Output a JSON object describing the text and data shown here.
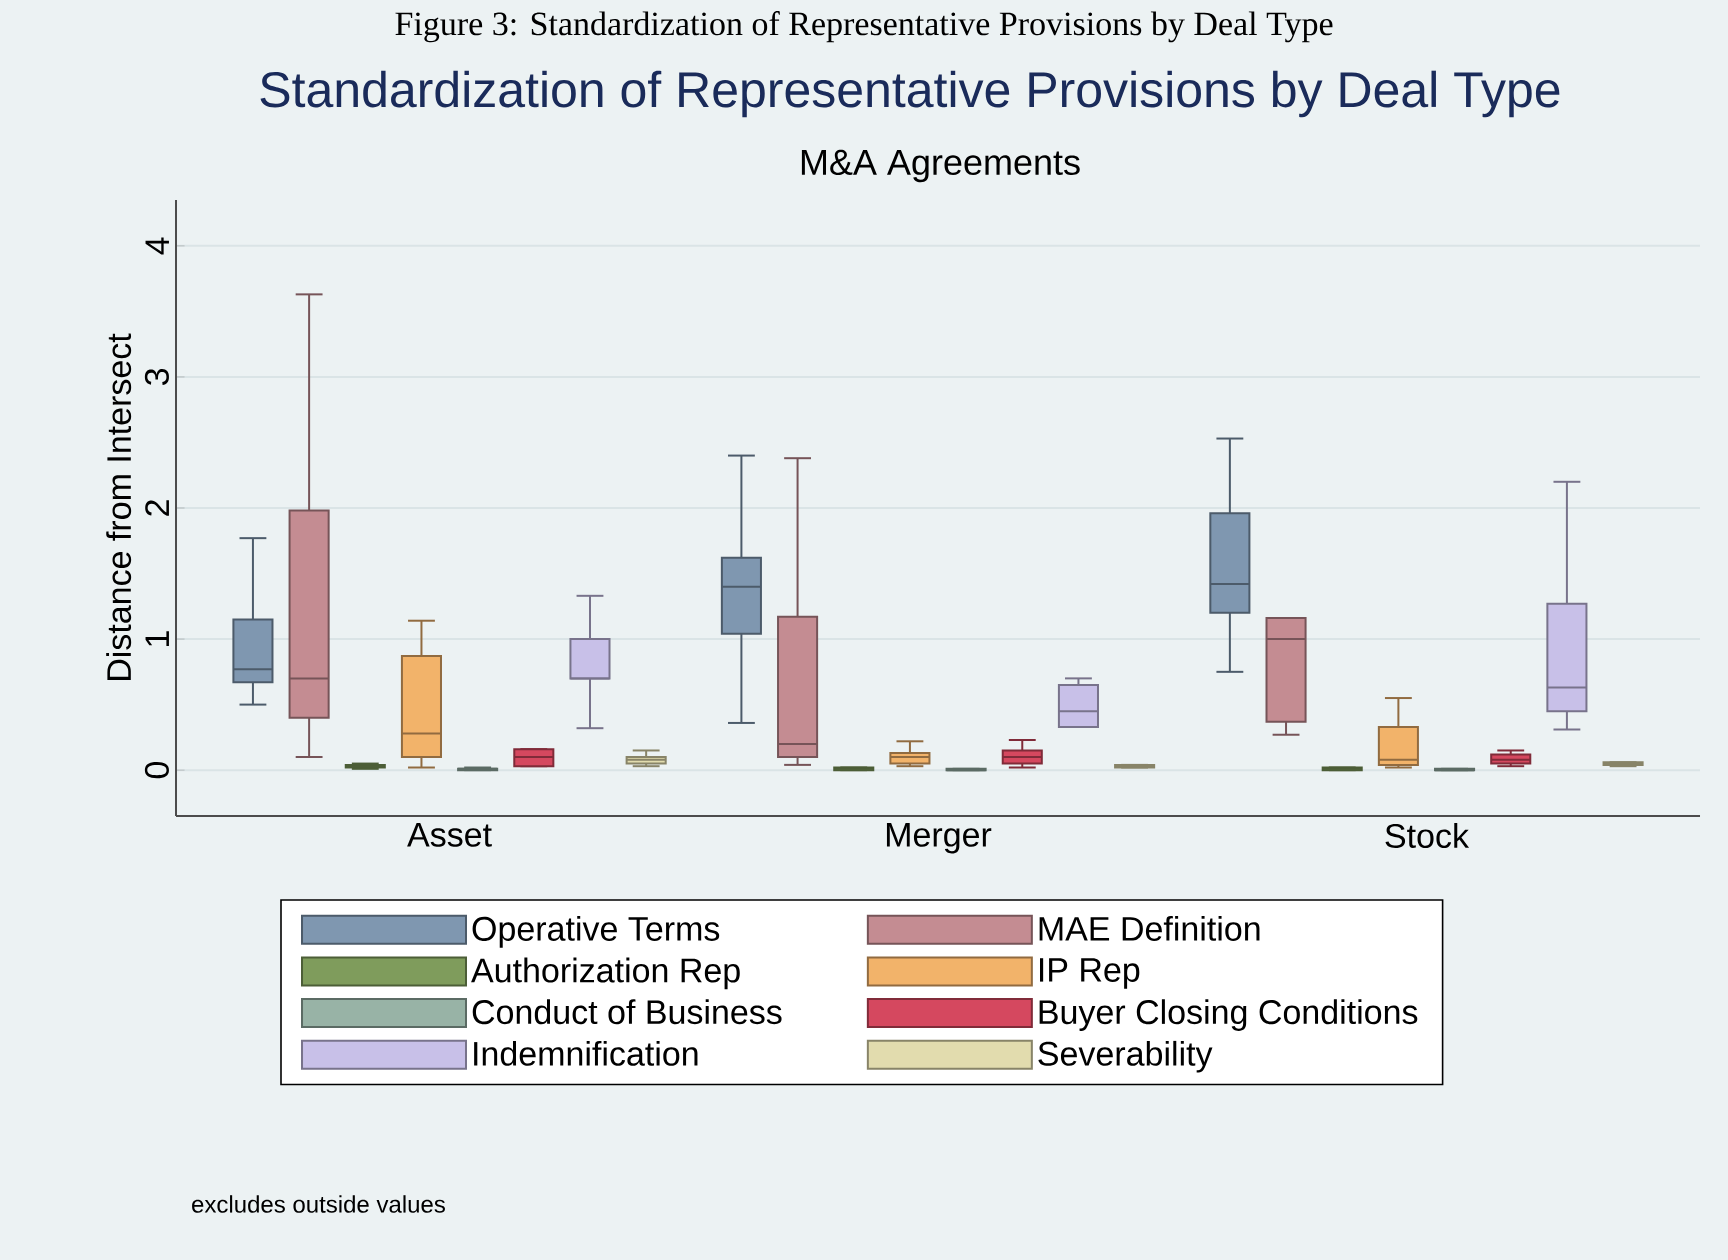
{
  "chart_data": {
    "type": "box",
    "title": "Standardization of Representative Provisions by Deal Type",
    "subtitle": "M&A Agreements",
    "ylabel": "Distance from Intersect",
    "categories": [
      "Asset",
      "Merger",
      "Stock"
    ],
    "series": [
      {
        "name": "Operative Terms",
        "color": "#7f97b0",
        "boxes": [
          {
            "low": 0.5,
            "q1": 0.67,
            "median": 0.77,
            "q3": 1.15,
            "high": 1.77
          },
          {
            "low": 0.36,
            "q1": 1.04,
            "median": 1.4,
            "q3": 1.62,
            "high": 2.4
          },
          {
            "low": 0.75,
            "q1": 1.2,
            "median": 1.42,
            "q3": 1.96,
            "high": 2.53
          }
        ]
      },
      {
        "name": "MAE Definition",
        "color": "#c48c92",
        "boxes": [
          {
            "low": 0.1,
            "q1": 0.4,
            "median": 0.7,
            "q3": 1.98,
            "high": 3.63
          },
          {
            "low": 0.04,
            "q1": 0.1,
            "median": 0.2,
            "q3": 1.17,
            "high": 2.38
          },
          {
            "low": 0.27,
            "q1": 0.37,
            "median": 1.0,
            "q3": 1.16,
            "high": 1.16
          }
        ]
      },
      {
        "name": "Authorization Rep",
        "color": "#7f9c5c",
        "boxes": [
          {
            "low": 0.01,
            "q1": 0.02,
            "median": 0.03,
            "q3": 0.04,
            "high": 0.05
          },
          {
            "low": 0.0,
            "q1": 0.0,
            "median": 0.01,
            "q3": 0.02,
            "high": 0.02
          },
          {
            "low": 0.0,
            "q1": 0.0,
            "median": 0.01,
            "q3": 0.02,
            "high": 0.02
          }
        ]
      },
      {
        "name": "IP Rep",
        "color": "#f2b36a",
        "boxes": [
          {
            "low": 0.02,
            "q1": 0.1,
            "median": 0.28,
            "q3": 0.87,
            "high": 1.14
          },
          {
            "low": 0.03,
            "q1": 0.05,
            "median": 0.1,
            "q3": 0.13,
            "high": 0.22
          },
          {
            "low": 0.02,
            "q1": 0.04,
            "median": 0.08,
            "q3": 0.33,
            "high": 0.55
          }
        ]
      },
      {
        "name": "Conduct of Business",
        "color": "#98b3a6",
        "boxes": [
          {
            "low": 0.0,
            "q1": 0.0,
            "median": 0.01,
            "q3": 0.01,
            "high": 0.02
          },
          {
            "low": 0.0,
            "q1": 0.0,
            "median": 0.0,
            "q3": 0.01,
            "high": 0.01
          },
          {
            "low": 0.0,
            "q1": 0.0,
            "median": 0.0,
            "q3": 0.01,
            "high": 0.01
          }
        ]
      },
      {
        "name": "Buyer Closing Conditions",
        "color": "#d5485f",
        "boxes": [
          {
            "low": 0.03,
            "q1": 0.03,
            "median": 0.1,
            "q3": 0.16,
            "high": 0.16
          },
          {
            "low": 0.02,
            "q1": 0.05,
            "median": 0.1,
            "q3": 0.15,
            "high": 0.23
          },
          {
            "low": 0.03,
            "q1": 0.05,
            "median": 0.08,
            "q3": 0.12,
            "high": 0.15
          }
        ]
      },
      {
        "name": "Indemnification",
        "color": "#c8c0e8",
        "boxes": [
          {
            "low": 0.32,
            "q1": 0.7,
            "median": 0.7,
            "q3": 1.0,
            "high": 1.33
          },
          {
            "low": 0.33,
            "q1": 0.33,
            "median": 0.45,
            "q3": 0.65,
            "high": 0.7
          },
          {
            "low": 0.31,
            "q1": 0.45,
            "median": 0.63,
            "q3": 1.27,
            "high": 2.2
          }
        ]
      },
      {
        "name": "Severability",
        "color": "#e2dcae",
        "boxes": [
          {
            "low": 0.03,
            "q1": 0.05,
            "median": 0.08,
            "q3": 0.1,
            "high": 0.15
          },
          {
            "low": 0.02,
            "q1": 0.02,
            "median": 0.03,
            "q3": 0.04,
            "high": 0.04
          },
          {
            "low": 0.03,
            "q1": 0.04,
            "median": 0.05,
            "q3": 0.06,
            "high": 0.06
          }
        ]
      }
    ],
    "ylim": [
      -0.35,
      4.35
    ],
    "yticks": [
      0,
      1,
      2,
      3,
      4
    ],
    "grid": "y",
    "legend": "bottom",
    "annotations": [
      "Figure 3: Standardization of Representative Provisions by Deal Type",
      "excludes outside values"
    ]
  }
}
